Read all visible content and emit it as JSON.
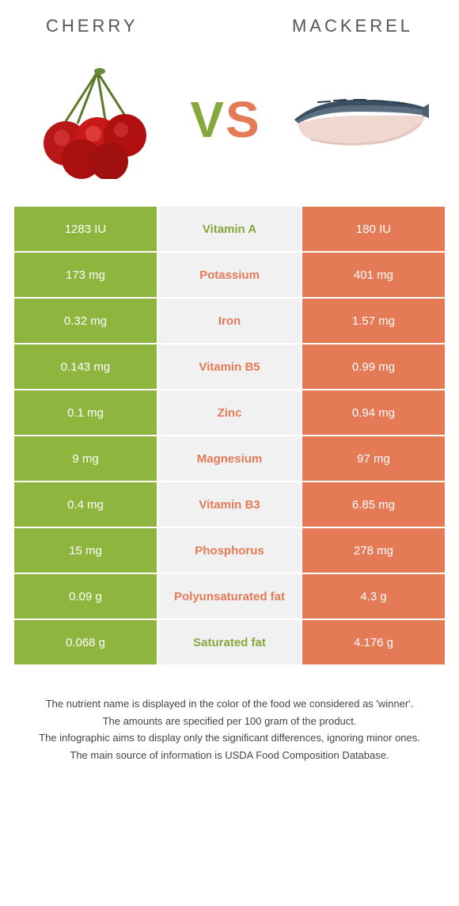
{
  "header": {
    "left": "CHERRY",
    "right": "MACKEREL"
  },
  "vs": {
    "v": "V",
    "s": "S"
  },
  "colors": {
    "green": "#8eb63f",
    "green_dark": "#86a93e",
    "orange": "#e57a57",
    "mid_bg": "#f1f1f1"
  },
  "rows": [
    {
      "left": "1283 IU",
      "mid": "Vitamin A",
      "right": "180 IU",
      "winner": "left"
    },
    {
      "left": "173 mg",
      "mid": "Potassium",
      "right": "401 mg",
      "winner": "right"
    },
    {
      "left": "0.32 mg",
      "mid": "Iron",
      "right": "1.57 mg",
      "winner": "right"
    },
    {
      "left": "0.143 mg",
      "mid": "Vitamin B5",
      "right": "0.99 mg",
      "winner": "right"
    },
    {
      "left": "0.1 mg",
      "mid": "Zinc",
      "right": "0.94 mg",
      "winner": "right"
    },
    {
      "left": "9 mg",
      "mid": "Magnesium",
      "right": "97 mg",
      "winner": "right"
    },
    {
      "left": "0.4 mg",
      "mid": "Vitamin B3",
      "right": "6.85 mg",
      "winner": "right"
    },
    {
      "left": "15 mg",
      "mid": "Phosphorus",
      "right": "278 mg",
      "winner": "right"
    },
    {
      "left": "0.09 g",
      "mid": "Polyunsaturated fat",
      "right": "4.3 g",
      "winner": "right"
    },
    {
      "left": "0.068 g",
      "mid": "Saturated fat",
      "right": "4.176 g",
      "winner": "left"
    }
  ],
  "footnotes": [
    "The nutrient name is displayed in the color of the food we considered as 'winner'.",
    "The amounts are specified per 100 gram of the product.",
    "The infographic aims to display only the significant differences, ignoring minor ones.",
    "The main source of information is USDA Food Composition Database."
  ]
}
